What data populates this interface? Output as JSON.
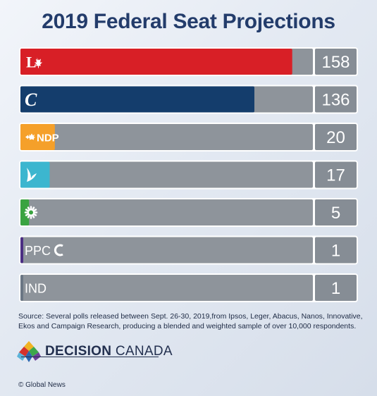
{
  "title": "2019 Federal Seat Projections",
  "chart_data": {
    "type": "bar",
    "orientation": "horizontal",
    "title": "2019 Federal Seat Projections",
    "xlim": [
      0,
      170
    ],
    "categories": [
      "L",
      "C",
      "NDP",
      "B",
      "G",
      "PPC",
      "IND"
    ],
    "values": [
      158,
      136,
      20,
      17,
      5,
      1,
      1
    ],
    "colors": [
      "#d81f26",
      "#143d6c",
      "#f5a02a",
      "#3cb6cf",
      "#3aa341",
      "#4b2e83",
      "#6a7684"
    ],
    "logo_icons": [
      "liberal-logo-icon",
      "conservative-logo-icon",
      "ndp-logo-icon",
      "bloc-logo-icon",
      "green-logo-icon",
      "ppc-logo-icon",
      "ind-label"
    ],
    "track_color": "#8e949b",
    "value_box_color": "#868d95"
  },
  "logo_text": {
    "ndp": "NDP",
    "ppc": "PPC",
    "ind": "IND"
  },
  "source_text": "Source: Several polls released between Sept. 26-30, 2019,from Ipsos, Leger, Abacus, Nanos, Innovative, Ekos and Campaign Research, producing a blended and weighted sample of over 10,000 respondents.",
  "brand": {
    "bold": "DECISION",
    "light": "CANADA"
  },
  "credit": "© Global News"
}
